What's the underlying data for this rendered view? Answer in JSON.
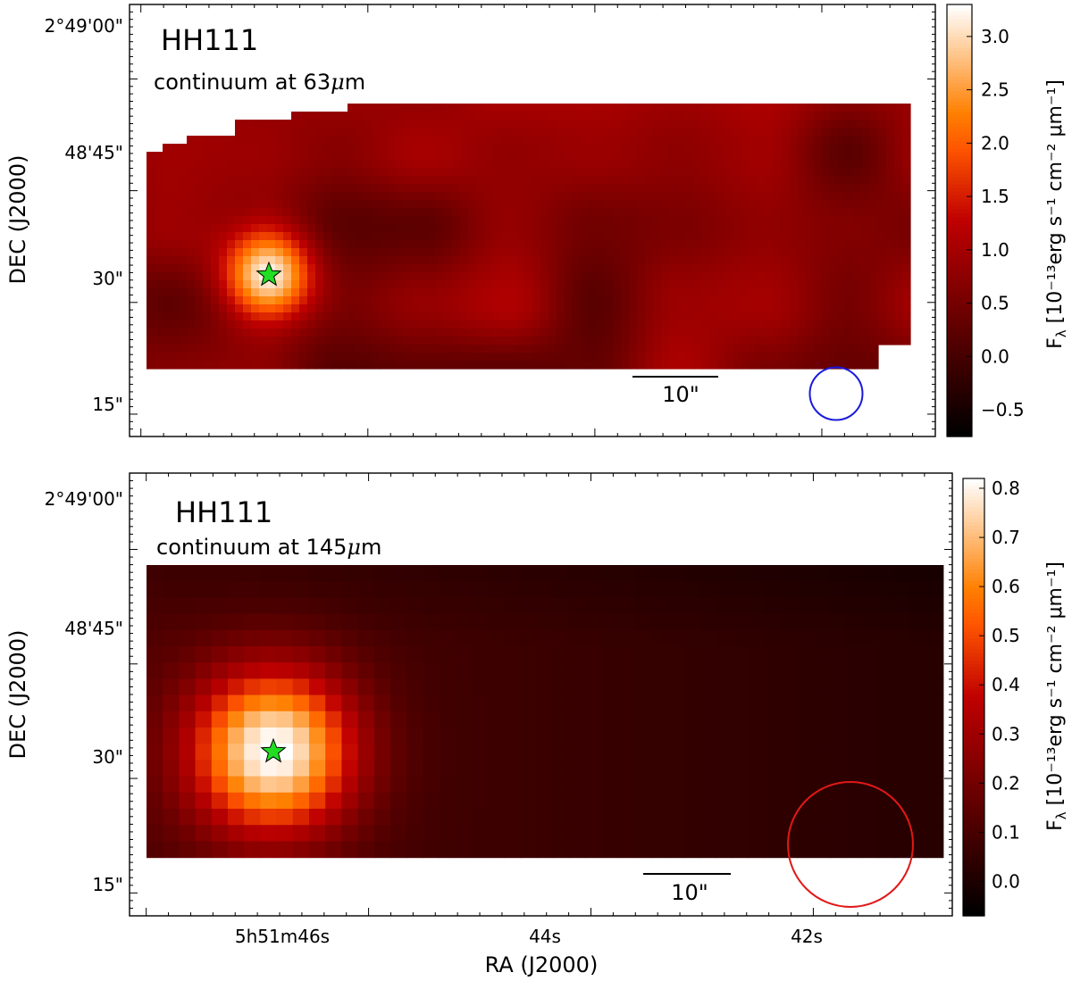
{
  "chart_data": [
    {
      "type": "heatmap",
      "title": "HH111",
      "subtitle": "continuum at 63μm",
      "subtitle_prefix": "continuum at 63",
      "subtitle_unit": "m",
      "xlabel": "",
      "ylabel": "DEC (J2000)",
      "y_ticks": [
        "2°49'00\"",
        "48'45\"",
        "30\"",
        "15\""
      ],
      "y_tick_values_arcsec": [
        60,
        45,
        30,
        15
      ],
      "ylim_arcsec": [
        12,
        70
      ],
      "x_tick_values_s": [
        46,
        44,
        42
      ],
      "colorbar": {
        "label_prefix": "F",
        "label_sub": "λ",
        "label_rest": " [10⁻¹³erg s⁻¹ cm⁻² μm⁻¹]",
        "range": [
          -0.75,
          3.3
        ],
        "ticks": [
          3.0,
          2.5,
          2.0,
          1.5,
          1.0,
          0.5,
          0.0,
          -0.5
        ],
        "tick_labels": [
          "3.0",
          "2.5",
          "2.0",
          "1.5",
          "1.0",
          "0.5",
          "0.0",
          "−0.5"
        ],
        "colormap": "gist_heat"
      },
      "map": {
        "background": 0.9,
        "peak": 3.3,
        "source_ra_s": 46.1,
        "source_dec_arcsec": 30.3,
        "extent_ra_s": [
          46.65,
          41.35
        ],
        "extent_dec_arcsec": [
          20.5,
          53
        ]
      },
      "source_marker": {
        "symbol": "star",
        "color": "#22dd22",
        "ra_s": 46.1,
        "dec_arcsec": 30.3
      },
      "scale_bar_label": "10\"",
      "beam": {
        "color": "#1a1adc",
        "diameter_arcsec": 7.2
      }
    },
    {
      "type": "heatmap",
      "title": "HH111",
      "subtitle": "continuum at 145μm",
      "subtitle_prefix": "continuum at 145",
      "subtitle_unit": "m",
      "xlabel": "RA (J2000)",
      "ylabel": "DEC (J2000)",
      "x_ticks": [
        "5h51m46s",
        "44s",
        "42s"
      ],
      "x_tick_values_s": [
        46,
        44,
        42
      ],
      "y_ticks": [
        "2°49'00\"",
        "48'45\"",
        "30\"",
        "15\""
      ],
      "y_tick_values_arcsec": [
        60,
        45,
        30,
        15
      ],
      "ylim_arcsec": [
        12,
        70
      ],
      "colorbar": {
        "label_prefix": "F",
        "label_sub": "λ",
        "label_rest": " [10⁻¹³erg s⁻¹ cm⁻² μm⁻¹]",
        "range": [
          -0.07,
          0.82
        ],
        "ticks": [
          0.8,
          0.7,
          0.6,
          0.5,
          0.4,
          0.3,
          0.2,
          0.1,
          0.0
        ],
        "tick_labels": [
          "0.8",
          "0.7",
          "0.6",
          "0.5",
          "0.4",
          "0.3",
          "0.2",
          "0.1",
          "0.0"
        ],
        "colormap": "gist_heat"
      },
      "map": {
        "background": 0.09,
        "peak": 0.82,
        "source_ra_s": 46.05,
        "source_dec_arcsec": 30.3,
        "extent_ra_s": [
          46.7,
          41.3
        ],
        "extent_dec_arcsec": [
          18,
          52
        ]
      },
      "source_marker": {
        "symbol": "star",
        "color": "#22dd22",
        "ra_s": 46.05,
        "dec_arcsec": 30.3
      },
      "scale_bar_label": "10\"",
      "beam": {
        "color": "#e01818",
        "diameter_arcsec": 15
      }
    }
  ]
}
